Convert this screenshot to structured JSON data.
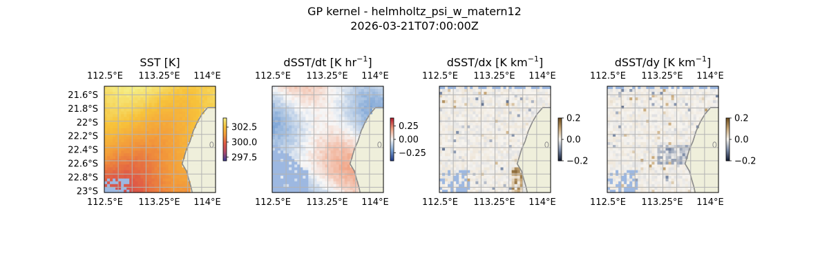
{
  "figure": {
    "title": "GP kernel - helmholtz_psi_w_matern12",
    "subtitle": "2026-03-21T07:00:00Z"
  },
  "colors": {
    "land": "#efefdb",
    "ocean_mask": "#9db8e1",
    "coastline": "#8a8a8a",
    "grid": "#b3b3b3"
  },
  "chart_data": [
    {
      "type": "heatmap",
      "title": "SST [K]",
      "title_unit": "",
      "colormap": [
        "#3b3b9a",
        "#b04a6a",
        "#e05a45",
        "#f39a3a",
        "#f7c23a",
        "#f5f08a"
      ],
      "colorbar_ticks": [
        "302.5",
        "300.0",
        "297.5"
      ],
      "colorbar_tick_values": [
        302.5,
        300.0,
        297.5
      ],
      "colorbar_range": [
        296.9,
        304.0
      ],
      "x_ticks_top": [
        "112.5°E",
        "113.25°E",
        "114°E"
      ],
      "x_ticks_bottom": [
        "112.5°E",
        "113.25°E",
        "114°E"
      ],
      "y_ticks": [
        "21.6°S",
        "21.8°S",
        "22°S",
        "22.2°S",
        "22.4°S",
        "22.6°S",
        "22.8°S",
        "23°S"
      ],
      "x_range": [
        112.5,
        114.0
      ],
      "y_range": [
        -23.0,
        -21.5
      ],
      "pattern": "sst"
    },
    {
      "type": "heatmap",
      "title": "dSST/dt [K hr",
      "title_unit": "−1",
      "title_close": "]",
      "colormap": [
        "#1f3a8a",
        "#7fa6d6",
        "#f7f7f7",
        "#f0a080",
        "#b2182b"
      ],
      "colorbar_ticks": [
        "0.25",
        "0.00",
        "−0.25"
      ],
      "colorbar_tick_values": [
        0.25,
        0.0,
        -0.25
      ],
      "colorbar_range": [
        -0.4,
        0.4
      ],
      "x_ticks_top": [
        "112.5°E",
        "113.25°E",
        "114°E"
      ],
      "x_ticks_bottom": [
        "112.5°E",
        "113.25°E",
        "114°E"
      ],
      "y_ticks": [],
      "pattern": "dt"
    },
    {
      "type": "heatmap",
      "title": "dSST/dx [K km",
      "title_unit": "−1",
      "title_close": "]",
      "colormap": [
        "#101830",
        "#7a8aa6",
        "#f7f4ef",
        "#c8a878",
        "#6b4a1a"
      ],
      "colorbar_ticks": [
        "0.2",
        "0.0",
        "−0.2"
      ],
      "colorbar_tick_values": [
        0.2,
        0.0,
        -0.2
      ],
      "colorbar_range": [
        -0.2,
        0.2
      ],
      "x_ticks_top": [
        "112.5°E",
        "113.25°E",
        "114°E"
      ],
      "x_ticks_bottom": [
        "112.5°E",
        "113.25°E",
        "114°E"
      ],
      "y_ticks": [],
      "pattern": "dx"
    },
    {
      "type": "heatmap",
      "title": "dSST/dy [K km",
      "title_unit": "−1",
      "title_close": "]",
      "colormap": [
        "#101830",
        "#7a8aa6",
        "#f7f4ef",
        "#c8a878",
        "#6b4a1a"
      ],
      "colorbar_ticks": [
        "0.2",
        "0.0",
        "−0.2"
      ],
      "colorbar_tick_values": [
        0.2,
        0.0,
        -0.2
      ],
      "colorbar_range": [
        -0.2,
        0.2
      ],
      "x_ticks_top": [
        "112.5°E",
        "113.25°E",
        "114°E"
      ],
      "x_ticks_bottom": [
        "112.5°E",
        "113.25°E",
        "114°E"
      ],
      "y_ticks": [],
      "pattern": "dy"
    }
  ]
}
